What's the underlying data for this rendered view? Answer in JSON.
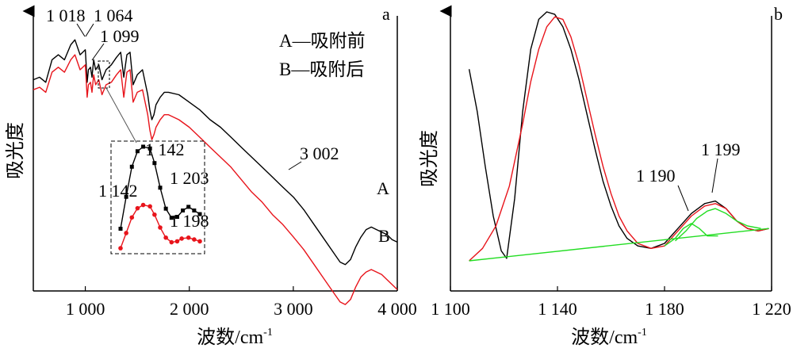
{
  "chart_data": [
    {
      "type": "line",
      "panel_label": "a",
      "xlabel": "波数/cm",
      "xlabel_sup": "-1",
      "ylabel": "吸光度",
      "xlim": [
        500,
        4000
      ],
      "xticks": [
        1000,
        2000,
        3000,
        4000
      ],
      "xtick_labels": [
        "1 000",
        "2 000",
        "3 000",
        "4 000"
      ],
      "yticks": false,
      "grid": false,
      "legend_position": "top-right",
      "legend": [
        "A—吸附前",
        "B—吸附后"
      ],
      "series": [
        {
          "name": "A",
          "color": "#000000",
          "x": [
            500,
            560,
            620,
            680,
            740,
            800,
            860,
            900,
            950,
            1000,
            1018,
            1030,
            1050,
            1064,
            1080,
            1099,
            1130,
            1160,
            1200,
            1250,
            1300,
            1340,
            1370,
            1400,
            1430,
            1460,
            1500,
            1550,
            1600,
            1620,
            1640,
            1660,
            1680,
            1720,
            1760,
            1800,
            1900,
            2000,
            2100,
            2200,
            2300,
            2400,
            2500,
            2600,
            2700,
            2800,
            2900,
            3002,
            3100,
            3200,
            3300,
            3400,
            3450,
            3500,
            3550,
            3600,
            3650,
            3700,
            3750,
            3800,
            3850,
            3900,
            3950,
            4000
          ],
          "y": [
            0.76,
            0.77,
            0.75,
            0.84,
            0.86,
            0.84,
            0.9,
            0.92,
            0.86,
            0.88,
            0.75,
            0.8,
            0.81,
            0.77,
            0.84,
            0.8,
            0.82,
            0.76,
            0.8,
            0.82,
            0.85,
            0.87,
            0.77,
            0.86,
            0.87,
            0.74,
            0.78,
            0.8,
            0.7,
            0.64,
            0.6,
            0.62,
            0.66,
            0.69,
            0.71,
            0.71,
            0.7,
            0.67,
            0.64,
            0.6,
            0.57,
            0.53,
            0.49,
            0.45,
            0.41,
            0.37,
            0.33,
            0.29,
            0.24,
            0.18,
            0.12,
            0.06,
            0.03,
            0.02,
            0.04,
            0.09,
            0.13,
            0.16,
            0.17,
            0.16,
            0.15,
            0.14,
            0.12,
            0.11
          ]
        },
        {
          "name": "B",
          "color": "#e8141b",
          "x": [
            500,
            560,
            620,
            680,
            740,
            800,
            860,
            900,
            950,
            1000,
            1018,
            1030,
            1050,
            1064,
            1080,
            1099,
            1130,
            1160,
            1200,
            1250,
            1300,
            1340,
            1370,
            1400,
            1430,
            1460,
            1500,
            1550,
            1600,
            1620,
            1640,
            1660,
            1680,
            1720,
            1760,
            1800,
            1900,
            2000,
            2100,
            2200,
            2300,
            2400,
            2500,
            2600,
            2700,
            2800,
            2900,
            3002,
            3100,
            3200,
            3300,
            3400,
            3450,
            3500,
            3550,
            3600,
            3650,
            3700,
            3750,
            3800,
            3850,
            3900,
            3950,
            4000
          ],
          "y": [
            0.72,
            0.73,
            0.71,
            0.79,
            0.81,
            0.79,
            0.84,
            0.86,
            0.8,
            0.82,
            0.69,
            0.74,
            0.75,
            0.71,
            0.78,
            0.74,
            0.76,
            0.7,
            0.74,
            0.75,
            0.78,
            0.8,
            0.69,
            0.79,
            0.8,
            0.67,
            0.71,
            0.72,
            0.62,
            0.56,
            0.52,
            0.54,
            0.57,
            0.6,
            0.62,
            0.62,
            0.6,
            0.57,
            0.53,
            0.49,
            0.45,
            0.41,
            0.36,
            0.31,
            0.27,
            0.22,
            0.18,
            0.13,
            0.08,
            0.02,
            -0.04,
            -0.1,
            -0.13,
            -0.14,
            -0.12,
            -0.07,
            -0.03,
            -0.01,
            0.0,
            -0.01,
            -0.02,
            -0.04,
            -0.06,
            -0.08
          ]
        }
      ],
      "curve_labels": [
        "A",
        "B"
      ],
      "peak_labels": [
        "1 018",
        "1 064",
        "1 099",
        "3 002"
      ],
      "inset": {
        "black_peak_labels": [
          "1 142",
          "1 203"
        ],
        "red_peak_labels": [
          "1 142",
          "1 198"
        ],
        "black": {
          "x": [
            1090,
            1100,
            1110,
            1120,
            1130,
            1142,
            1150,
            1160,
            1170,
            1180,
            1190,
            1200,
            1210,
            1220,
            1230
          ],
          "y": [
            0.1,
            0.45,
            0.78,
            0.95,
            1.0,
            0.98,
            0.82,
            0.55,
            0.32,
            0.22,
            0.23,
            0.3,
            0.34,
            0.3,
            0.26
          ]
        },
        "red": {
          "x": [
            1090,
            1100,
            1110,
            1120,
            1130,
            1142,
            1150,
            1160,
            1170,
            1180,
            1190,
            1198,
            1210,
            1220,
            1230
          ],
          "y": [
            0.05,
            0.38,
            0.72,
            0.92,
            0.99,
            0.96,
            0.78,
            0.5,
            0.28,
            0.18,
            0.2,
            0.26,
            0.28,
            0.24,
            0.2
          ]
        }
      }
    },
    {
      "type": "line",
      "panel_label": "b",
      "xlabel": "波数/cm",
      "xlabel_sup": "-1",
      "ylabel": "吸光度",
      "xlim": [
        1100,
        1220
      ],
      "xticks": [
        1100,
        1140,
        1180,
        1220
      ],
      "xtick_labels": [
        "1 100",
        "1 140",
        "1 180",
        "1 220"
      ],
      "yticks": false,
      "grid": false,
      "ylim": [
        0,
        1.05
      ],
      "peak_labels": [
        "1 190",
        "1 199"
      ],
      "series": [
        {
          "color": "#000000",
          "x": [
            1107,
            1110,
            1113,
            1116,
            1119,
            1121,
            1124,
            1127,
            1130,
            1133,
            1136,
            1139,
            1142,
            1145,
            1148,
            1151,
            1154,
            1157,
            1160,
            1163,
            1166,
            1170,
            1175,
            1180,
            1185,
            1190,
            1195,
            1199,
            1203,
            1207,
            1211,
            1215,
            1219
          ],
          "y": [
            0.77,
            0.6,
            0.38,
            0.18,
            0.04,
            0.01,
            0.25,
            0.6,
            0.85,
            0.97,
            1.0,
            0.99,
            0.94,
            0.85,
            0.73,
            0.59,
            0.45,
            0.32,
            0.22,
            0.14,
            0.09,
            0.06,
            0.05,
            0.07,
            0.13,
            0.19,
            0.23,
            0.24,
            0.21,
            0.16,
            0.13,
            0.12,
            0.13
          ]
        },
        {
          "color": "#e8141b",
          "x": [
            1107,
            1112,
            1117,
            1122,
            1127,
            1130,
            1133,
            1136,
            1139,
            1142,
            1145,
            1148,
            1151,
            1154,
            1157,
            1160,
            1163,
            1166,
            1170,
            1175,
            1180,
            1185,
            1190,
            1195,
            1199,
            1203,
            1207,
            1211,
            1215,
            1219
          ],
          "y": [
            0.0,
            0.05,
            0.14,
            0.3,
            0.55,
            0.72,
            0.85,
            0.94,
            0.98,
            0.97,
            0.9,
            0.79,
            0.65,
            0.51,
            0.38,
            0.27,
            0.18,
            0.12,
            0.07,
            0.05,
            0.06,
            0.12,
            0.18,
            0.22,
            0.23,
            0.21,
            0.16,
            0.13,
            0.12,
            0.13
          ]
        },
        {
          "color": "#22dd22",
          "x": [
            1107,
            1219
          ],
          "y": [
            0.0,
            0.13
          ]
        },
        {
          "color": "#22dd22",
          "x": [
            1180,
            1184,
            1187,
            1190,
            1193,
            1196,
            1200
          ],
          "y": [
            0.06,
            0.09,
            0.13,
            0.15,
            0.13,
            0.1,
            0.1
          ]
        },
        {
          "color": "#22dd22",
          "x": [
            1184,
            1188,
            1192,
            1196,
            1199,
            1203,
            1207,
            1211,
            1216
          ],
          "y": [
            0.08,
            0.12,
            0.17,
            0.2,
            0.21,
            0.19,
            0.16,
            0.14,
            0.13
          ]
        }
      ]
    }
  ]
}
